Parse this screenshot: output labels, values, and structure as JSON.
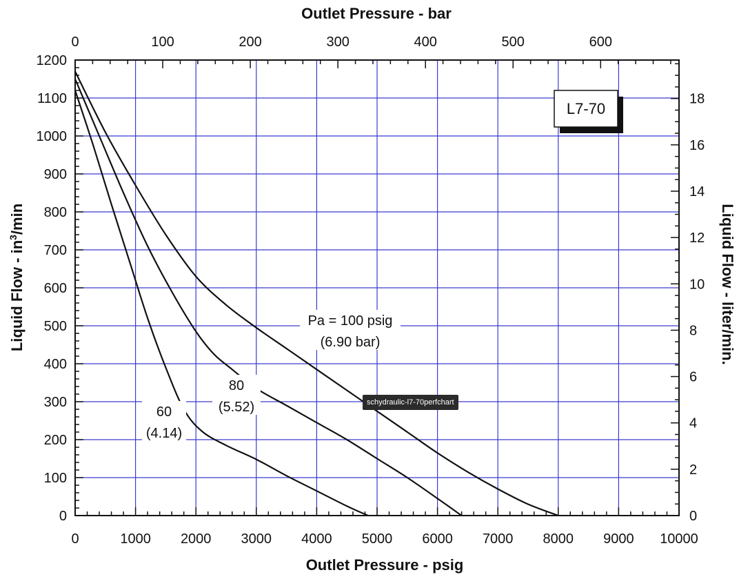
{
  "tooltip": "schydraulic-l7-70perfchart",
  "chart_data": {
    "type": "line",
    "title": "",
    "model_label": "L7-70",
    "xlabel": "Outlet Pressure - psig",
    "x2label": "Outlet Pressure - bar",
    "ylabel": "Liquid Flow - in³/min",
    "ylabel_base": "Liquid Flow - in",
    "ylabel_sup": "3",
    "ylabel_tail": "/min",
    "y2label": "Liquid Flow - liter/min.",
    "xlim": [
      0,
      10000
    ],
    "ylim": [
      0,
      1200
    ],
    "x2lim": [
      0,
      689.5
    ],
    "y2lim": [
      0,
      19.66
    ],
    "xticks": [
      0,
      1000,
      2000,
      3000,
      4000,
      5000,
      6000,
      7000,
      8000,
      9000,
      10000
    ],
    "yticks": [
      0,
      100,
      200,
      300,
      400,
      500,
      600,
      700,
      800,
      900,
      1000,
      1100,
      1200
    ],
    "x2ticks": [
      0,
      100,
      200,
      300,
      400,
      500,
      600
    ],
    "y2ticks": [
      0,
      2,
      4,
      6,
      8,
      10,
      12,
      14,
      16,
      18
    ],
    "grid": true,
    "grid_color": "#3a3ad0",
    "series": [
      {
        "name": "60",
        "label_lines": [
          "60",
          "(4.14)"
        ],
        "x": [
          0,
          300,
          600,
          900,
          1200,
          1500,
          1800,
          2100,
          2500,
          3000,
          3500,
          4000,
          4500,
          4850
        ],
        "y": [
          1120,
          975,
          820,
          670,
          520,
          390,
          280,
          222,
          185,
          148,
          105,
          65,
          25,
          0
        ]
      },
      {
        "name": "80",
        "label_lines": [
          "80",
          "(5.52)"
        ],
        "x": [
          0,
          400,
          800,
          1200,
          1600,
          2000,
          2300,
          2600,
          3000,
          3500,
          4000,
          4500,
          5000,
          5500,
          6000,
          6400
        ],
        "y": [
          1150,
          1000,
          850,
          710,
          590,
          485,
          425,
          385,
          335,
          290,
          245,
          200,
          150,
          100,
          45,
          0
        ]
      },
      {
        "name": "Pa = 100 psig",
        "label_lines": [
          "Pa = 100 psig",
          "(6.90 bar)"
        ],
        "x": [
          0,
          500,
          1000,
          1500,
          2000,
          2500,
          3000,
          3500,
          4000,
          4500,
          5000,
          5500,
          6000,
          6500,
          7000,
          7500,
          8000
        ],
        "y": [
          1170,
          1010,
          870,
          740,
          630,
          555,
          495,
          440,
          385,
          330,
          275,
          220,
          165,
          115,
          70,
          30,
          0
        ]
      }
    ]
  }
}
